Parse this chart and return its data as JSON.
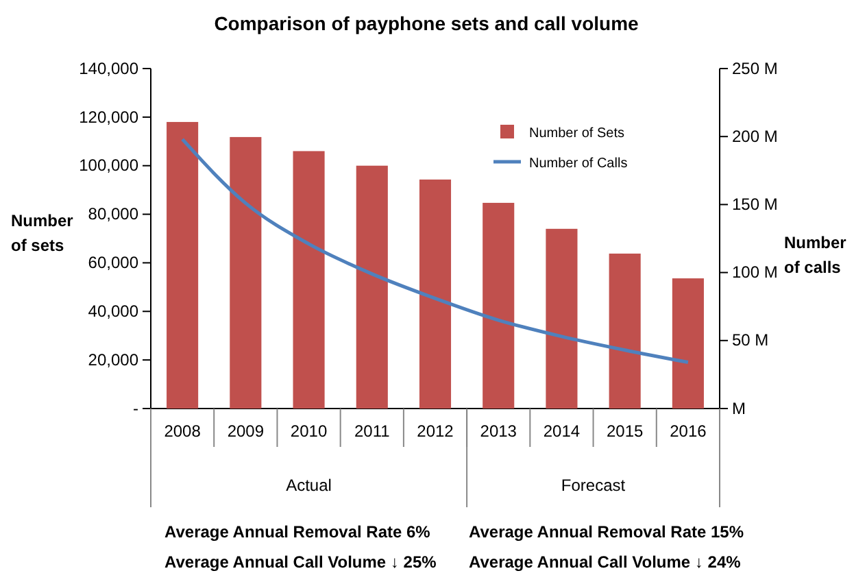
{
  "chart_data": {
    "type": "bar",
    "title": "Comparison of payphone sets and call volume",
    "ylabel": "Number of sets",
    "y2label": "Number of calls",
    "categories": [
      "2008",
      "2009",
      "2010",
      "2011",
      "2012",
      "2013",
      "2014",
      "2015",
      "2016"
    ],
    "series": [
      {
        "name": "Number of Sets",
        "color": "#c0504d",
        "values": [
          118000,
          111800,
          106000,
          100000,
          94300,
          84700,
          74000,
          63800,
          53600
        ]
      },
      {
        "name": "Number of Calls",
        "type": "line",
        "axis": "y2",
        "color": "#4f81bd",
        "values": [
          198,
          151,
          121,
          99,
          81,
          65,
          53,
          43,
          34
        ]
      }
    ],
    "ylim": [
      0,
      140000
    ],
    "yticks": [
      {
        "value": 0,
        "label": "-"
      },
      {
        "value": 20000,
        "label": "20,000"
      },
      {
        "value": 40000,
        "label": "40,000"
      },
      {
        "value": 60000,
        "label": "60,000"
      },
      {
        "value": 80000,
        "label": "80,000"
      },
      {
        "value": 100000,
        "label": "100,000"
      },
      {
        "value": 120000,
        "label": "120,000"
      },
      {
        "value": 140000,
        "label": "140,000"
      }
    ],
    "y2lim": [
      0,
      250
    ],
    "y2ticks": [
      {
        "value": 0,
        "label": "M"
      },
      {
        "value": 50,
        "label": "50 M"
      },
      {
        "value": 100,
        "label": "100 M"
      },
      {
        "value": 150,
        "label": "150 M"
      },
      {
        "value": 200,
        "label": "200 M"
      },
      {
        "value": 250,
        "label": "250 M"
      }
    ],
    "legend": "top right",
    "grid": false,
    "marker": "none",
    "line_style": "solid",
    "annotations": [
      "Actual",
      "Forecast",
      "Average Annual Removal Rate 6%",
      "Average Annual Call Volume ↓ 25%",
      "Average Annual Removal Rate 15%",
      "Average Annual Call Volume ↓ 24%"
    ]
  }
}
